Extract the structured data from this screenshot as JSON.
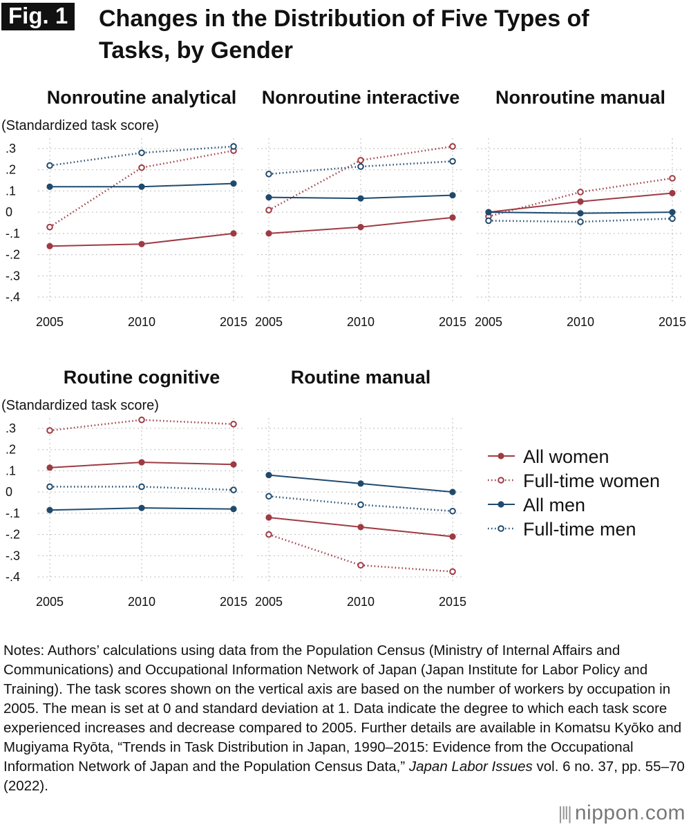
{
  "header": {
    "fig_label": "Fig. 1",
    "title_line1": "Changes in the Distribution of Five Types of",
    "title_line2": "Tasks, by Gender"
  },
  "chart_data": {
    "type": "line",
    "ylabel": "(Standardized task score)",
    "x": [
      "2005",
      "2010",
      "2015"
    ],
    "ylim": [
      -0.4,
      0.3
    ],
    "yticks": [
      ".3",
      ".2",
      ".1",
      "0",
      "-.1",
      "-.2",
      "-.3",
      "-.4"
    ],
    "grid": true,
    "legend_position": "right",
    "legend": [
      {
        "label": "All women",
        "color": "#9e3a43",
        "style": "solid-filled"
      },
      {
        "label": "Full-time women",
        "color": "#9e3a43",
        "style": "dotted-hollow"
      },
      {
        "label": "All men",
        "color": "#1f4a6e",
        "style": "solid-filled"
      },
      {
        "label": "Full-time men",
        "color": "#1f4a6e",
        "style": "dotted-hollow"
      }
    ],
    "panels": [
      {
        "title": "Nonroutine analytical",
        "series": [
          {
            "name": "All women",
            "values": [
              -0.16,
              -0.15,
              -0.1
            ]
          },
          {
            "name": "Full-time women",
            "values": [
              -0.07,
              0.21,
              0.29
            ]
          },
          {
            "name": "All men",
            "values": [
              0.12,
              0.12,
              0.135
            ]
          },
          {
            "name": "Full-time men",
            "values": [
              0.22,
              0.28,
              0.31
            ]
          }
        ]
      },
      {
        "title": "Nonroutine interactive",
        "series": [
          {
            "name": "All women",
            "values": [
              -0.1,
              -0.07,
              -0.025
            ]
          },
          {
            "name": "Full-time women",
            "values": [
              0.01,
              0.245,
              0.31
            ]
          },
          {
            "name": "All men",
            "values": [
              0.07,
              0.065,
              0.08
            ]
          },
          {
            "name": "Full-time men",
            "values": [
              0.18,
              0.215,
              0.24
            ]
          }
        ]
      },
      {
        "title": "Nonroutine manual",
        "series": [
          {
            "name": "All women",
            "values": [
              0.0,
              0.05,
              0.09
            ]
          },
          {
            "name": "Full-time women",
            "values": [
              -0.02,
              0.095,
              0.16
            ]
          },
          {
            "name": "All men",
            "values": [
              0.0,
              -0.005,
              0.0
            ]
          },
          {
            "name": "Full-time men",
            "values": [
              -0.04,
              -0.045,
              -0.03
            ]
          }
        ]
      },
      {
        "title": "Routine cognitive",
        "series": [
          {
            "name": "All women",
            "values": [
              0.115,
              0.14,
              0.13
            ]
          },
          {
            "name": "Full-time women",
            "values": [
              0.29,
              0.34,
              0.32
            ]
          },
          {
            "name": "All men",
            "values": [
              -0.085,
              -0.075,
              -0.08
            ]
          },
          {
            "name": "Full-time men",
            "values": [
              0.025,
              0.025,
              0.01
            ]
          }
        ]
      },
      {
        "title": "Routine manual",
        "series": [
          {
            "name": "All women",
            "values": [
              -0.12,
              -0.165,
              -0.21
            ]
          },
          {
            "name": "Full-time women",
            "values": [
              -0.2,
              -0.345,
              -0.375
            ]
          },
          {
            "name": "All men",
            "values": [
              0.08,
              0.04,
              0.0
            ]
          },
          {
            "name": "Full-time men",
            "values": [
              -0.02,
              -0.06,
              -0.09
            ]
          }
        ]
      }
    ]
  },
  "notes": {
    "text_before_italic": "Notes: Authors’ calculations using data from the Population Census (Ministry of Internal Affairs and Communications) and Occupational Information Network of Japan (Japan Institute for Labor Policy and Training). The task scores shown on the vertical axis are based on the number of workers by occupation in 2005. The mean is set at 0 and standard deviation at 1. Data indicate the degree to which each task score experienced increases and decrease compared to 2005. Further details are available in Komatsu Kyōko and Mugiyama Ryōta, “Trends in Task Distribution in Japan, 1990–2015: Evidence from the Occupational Information Network of Japan and the Population Census Data,” ",
    "italic": "Japan Labor Issues",
    "text_after_italic": " vol. 6 no. 37, pp. 55–70 (2022)."
  },
  "logo": {
    "name": "nippon",
    "dot": ".",
    "suffix": "com",
    "icon": "sound-bars-icon"
  }
}
